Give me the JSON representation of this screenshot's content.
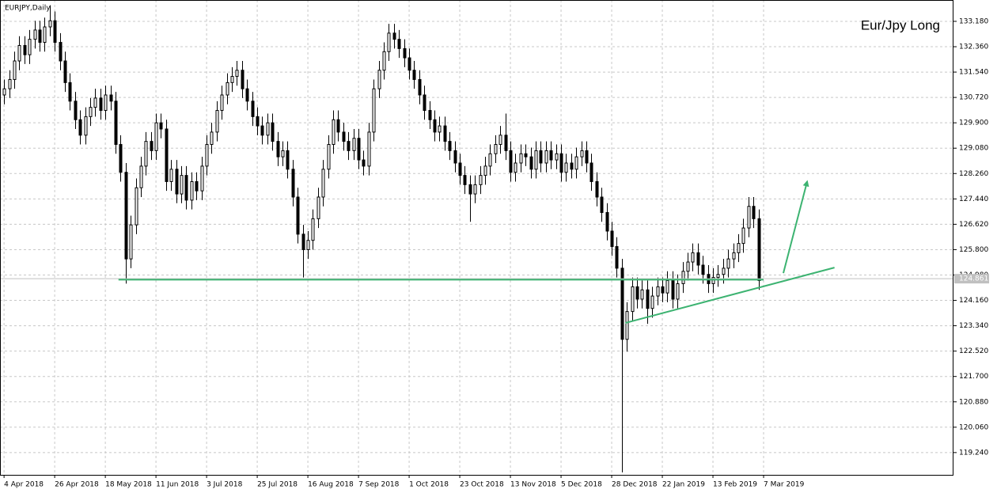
{
  "chart_data": {
    "type": "candlestick",
    "title": "EURJPY,Daily",
    "annotation_text": "Eur/Jpy Long",
    "open": [
      130.8,
      131.0,
      131.3,
      131.9,
      132.4,
      132.1,
      132.6,
      132.9,
      132.5,
      133.0,
      133.2,
      132.5,
      131.9,
      131.2,
      130.6,
      130.0,
      129.5,
      130.1,
      130.4,
      130.7,
      130.3,
      130.8,
      130.6,
      129.2,
      128.3,
      125.5,
      126.6,
      127.8,
      128.5,
      129.3,
      129.0,
      129.9,
      129.7,
      128.0,
      128.4,
      127.6,
      128.2,
      127.4,
      128.0,
      127.7,
      128.5,
      129.2,
      129.6,
      130.3,
      130.8,
      131.2,
      131.4,
      131.6,
      131.0,
      130.6,
      130.1,
      129.8,
      129.5,
      129.9,
      129.3,
      128.8,
      129.0,
      128.4,
      127.5,
      126.3,
      125.8,
      126.1,
      126.8,
      127.5,
      128.4,
      129.2,
      130.0,
      129.6,
      129.3,
      129.0,
      129.4,
      128.7,
      128.5,
      129.6,
      131.0,
      131.6,
      132.2,
      132.8,
      132.6,
      132.3,
      132.0,
      131.6,
      131.3,
      130.8,
      130.3,
      130.0,
      129.6,
      129.8,
      129.3,
      129.0,
      128.6,
      128.2,
      127.9,
      127.6,
      127.9,
      128.2,
      128.5,
      128.9,
      129.2,
      129.5,
      129.0,
      128.3,
      128.6,
      128.9,
      128.8,
      128.4,
      129.0,
      128.6,
      129.0,
      128.7,
      128.9,
      128.3,
      128.6,
      128.4,
      128.8,
      129.0,
      128.6,
      128.0,
      127.5,
      127.0,
      126.4,
      125.9,
      125.2,
      122.9,
      123.8,
      124.6,
      124.2,
      124.5,
      123.9,
      124.3,
      124.6,
      124.4,
      124.8,
      124.2,
      124.7,
      125.1,
      125.4,
      125.7,
      125.3,
      125.0,
      124.7,
      124.9,
      125.0,
      125.2,
      125.5,
      125.7,
      126.0,
      126.5,
      127.2,
      126.8
    ],
    "high": [
      131.3,
      131.6,
      132.2,
      132.7,
      132.7,
      132.9,
      133.2,
      133.2,
      133.3,
      133.7,
      133.5,
      132.8,
      132.2,
      131.5,
      130.9,
      130.3,
      130.4,
      130.7,
      131.0,
      131.0,
      131.1,
      131.1,
      130.9,
      129.5,
      128.6,
      126.9,
      128.1,
      128.8,
      129.6,
      129.6,
      130.2,
      130.2,
      130.0,
      128.7,
      128.7,
      128.5,
      128.5,
      128.3,
      128.3,
      128.8,
      129.5,
      129.9,
      130.6,
      131.1,
      131.5,
      131.7,
      131.9,
      131.9,
      131.3,
      130.9,
      130.4,
      130.1,
      130.2,
      130.2,
      129.6,
      129.3,
      129.3,
      128.7,
      127.8,
      126.6,
      126.4,
      127.1,
      127.8,
      128.7,
      129.5,
      130.3,
      130.3,
      129.9,
      129.6,
      129.7,
      129.7,
      129.0,
      129.9,
      131.3,
      131.9,
      132.5,
      133.1,
      133.1,
      132.9,
      132.6,
      132.3,
      131.9,
      131.6,
      131.1,
      130.6,
      130.3,
      130.1,
      130.1,
      129.6,
      129.3,
      128.9,
      128.5,
      128.2,
      128.2,
      128.5,
      128.8,
      129.2,
      129.5,
      129.8,
      130.2,
      129.3,
      128.9,
      129.2,
      129.2,
      129.1,
      129.3,
      129.3,
      129.3,
      129.3,
      129.2,
      129.2,
      128.9,
      128.9,
      129.1,
      129.3,
      129.3,
      128.9,
      128.3,
      127.8,
      127.3,
      126.7,
      126.2,
      125.5,
      124.1,
      124.9,
      124.9,
      124.8,
      124.8,
      124.6,
      124.9,
      124.9,
      125.1,
      125.1,
      125.0,
      125.4,
      125.7,
      126.0,
      126.0,
      125.6,
      125.3,
      125.2,
      125.3,
      125.5,
      125.8,
      126.0,
      126.3,
      126.8,
      127.5,
      127.5,
      127.1
    ],
    "low": [
      130.5,
      130.7,
      131.0,
      131.6,
      131.8,
      131.8,
      132.3,
      132.2,
      132.2,
      132.7,
      132.2,
      131.6,
      130.9,
      130.3,
      129.7,
      129.2,
      129.2,
      129.8,
      130.1,
      130.0,
      130.0,
      130.3,
      128.9,
      128.0,
      124.7,
      125.2,
      126.3,
      127.5,
      128.2,
      128.7,
      128.7,
      129.4,
      127.7,
      127.7,
      127.3,
      127.3,
      127.1,
      127.1,
      127.4,
      127.4,
      128.2,
      128.9,
      129.3,
      130.0,
      130.5,
      130.9,
      131.1,
      130.7,
      130.3,
      129.8,
      129.5,
      129.2,
      129.2,
      129.0,
      128.5,
      128.5,
      128.1,
      127.2,
      126.0,
      124.9,
      125.5,
      125.8,
      126.5,
      127.2,
      128.1,
      128.9,
      129.3,
      129.0,
      128.7,
      128.7,
      128.4,
      128.2,
      128.2,
      129.3,
      130.7,
      131.3,
      131.9,
      132.3,
      132.0,
      131.7,
      131.3,
      131.0,
      130.5,
      130.0,
      129.7,
      129.3,
      129.3,
      129.0,
      128.7,
      128.3,
      127.9,
      127.6,
      126.7,
      127.3,
      127.6,
      127.9,
      128.2,
      128.6,
      128.9,
      128.7,
      128.0,
      128.0,
      128.3,
      128.5,
      128.1,
      128.1,
      128.3,
      128.3,
      128.4,
      128.4,
      128.0,
      128.0,
      128.1,
      128.1,
      128.5,
      128.3,
      127.7,
      127.2,
      126.7,
      126.1,
      125.6,
      124.9,
      118.6,
      122.5,
      123.5,
      123.9,
      123.9,
      123.4,
      123.6,
      124.0,
      124.1,
      124.1,
      123.9,
      123.9,
      124.4,
      124.8,
      125.1,
      125.0,
      124.7,
      124.4,
      124.4,
      124.6,
      124.7,
      124.9,
      125.2,
      125.4,
      125.7,
      126.2,
      126.5,
      124.5
    ],
    "close": [
      131.0,
      131.3,
      131.9,
      132.4,
      132.1,
      132.6,
      132.9,
      132.5,
      133.0,
      133.2,
      132.5,
      131.9,
      131.2,
      130.6,
      130.0,
      129.5,
      130.1,
      130.4,
      130.7,
      130.3,
      130.8,
      130.6,
      129.2,
      128.3,
      125.5,
      126.6,
      127.8,
      128.5,
      129.3,
      129.0,
      129.9,
      129.7,
      128.0,
      128.4,
      127.6,
      128.2,
      127.4,
      128.0,
      127.7,
      128.5,
      129.2,
      129.6,
      130.3,
      130.8,
      131.2,
      131.4,
      131.6,
      131.0,
      130.6,
      130.1,
      129.8,
      129.5,
      129.9,
      129.3,
      128.8,
      129.0,
      128.4,
      127.5,
      126.3,
      125.8,
      126.1,
      126.8,
      127.5,
      128.4,
      129.2,
      130.0,
      129.6,
      129.3,
      129.0,
      129.4,
      128.7,
      128.5,
      129.6,
      131.0,
      131.6,
      132.2,
      132.8,
      132.6,
      132.3,
      132.0,
      131.6,
      131.3,
      130.8,
      130.3,
      130.0,
      129.6,
      129.8,
      129.3,
      129.0,
      128.6,
      128.2,
      127.9,
      127.6,
      127.9,
      128.2,
      128.5,
      128.9,
      129.2,
      129.5,
      129.0,
      128.3,
      128.6,
      128.9,
      128.8,
      128.4,
      129.0,
      128.6,
      129.0,
      128.7,
      128.9,
      128.3,
      128.6,
      128.4,
      128.8,
      129.0,
      128.6,
      128.0,
      127.5,
      127.0,
      126.4,
      125.9,
      125.2,
      122.9,
      123.8,
      124.6,
      124.2,
      124.5,
      123.9,
      124.3,
      124.6,
      124.4,
      124.8,
      124.2,
      124.7,
      125.1,
      125.4,
      125.7,
      125.3,
      125.0,
      124.7,
      124.9,
      125.0,
      125.2,
      125.5,
      125.7,
      126.0,
      126.5,
      127.2,
      126.8,
      124.8
    ],
    "up_color": "#ffffff",
    "down_color": "#000000",
    "xlim": [
      -0.8,
      187.5
    ],
    "xticks": [
      {
        "value": 0,
        "label": "4 Apr 2018"
      },
      {
        "value": 10,
        "label": "26 Apr 2018"
      },
      {
        "value": 20,
        "label": "18 May 2018"
      },
      {
        "value": 30,
        "label": "11 Jun 2018"
      },
      {
        "value": 40,
        "label": "3 Jul 2018"
      },
      {
        "value": 50,
        "label": "25 Jul 2018"
      },
      {
        "value": 60,
        "label": "16 Aug 2018"
      },
      {
        "value": 70,
        "label": "7 Sep 2018"
      },
      {
        "value": 80,
        "label": "1 Oct 2018"
      },
      {
        "value": 90,
        "label": "23 Oct 2018"
      },
      {
        "value": 100,
        "label": "13 Nov 2018"
      },
      {
        "value": 110,
        "label": "5 Dec 2018"
      },
      {
        "value": 120,
        "label": "28 Dec 2018"
      },
      {
        "value": 130,
        "label": "22 Jan 2019"
      },
      {
        "value": 140,
        "label": "13 Feb 2019"
      },
      {
        "value": 150,
        "label": "7 Mar 2019"
      }
    ],
    "ylim": [
      118.52,
      133.87
    ],
    "yticks": [
      {
        "value": 133.18,
        "label": "133.180"
      },
      {
        "value": 132.36,
        "label": "132.360"
      },
      {
        "value": 131.54,
        "label": "131.540"
      },
      {
        "value": 130.72,
        "label": "130.720"
      },
      {
        "value": 129.9,
        "label": "129.900"
      },
      {
        "value": 129.08,
        "label": "129.080"
      },
      {
        "value": 128.26,
        "label": "128.260"
      },
      {
        "value": 127.44,
        "label": "127.440"
      },
      {
        "value": 126.62,
        "label": "126.620"
      },
      {
        "value": 125.8,
        "label": "125.800"
      },
      {
        "value": 124.98,
        "label": "124.980"
      },
      {
        "value": 124.16,
        "label": "124.160"
      },
      {
        "value": 123.34,
        "label": "123.340"
      },
      {
        "value": 122.52,
        "label": "122.520"
      },
      {
        "value": 121.7,
        "label": "121.700"
      },
      {
        "value": 120.88,
        "label": "120.880"
      },
      {
        "value": 120.06,
        "label": "120.060"
      },
      {
        "value": 119.24,
        "label": "119.240"
      }
    ],
    "grid": true,
    "current_price": {
      "value": 124.861,
      "label": "124.861"
    },
    "trend_lines": [
      {
        "x": [
          22.6,
          150
        ],
        "y": [
          124.83,
          124.83
        ],
        "color": "#3cb371"
      },
      {
        "x": [
          122.7,
          164
        ],
        "y": [
          123.43,
          125.22
        ],
        "color": "#3cb371"
      },
      {
        "x": [
          153.9,
          158.6
        ],
        "y": [
          125.04,
          128.0
        ],
        "color": "#3cb371",
        "arrow": true
      }
    ]
  }
}
